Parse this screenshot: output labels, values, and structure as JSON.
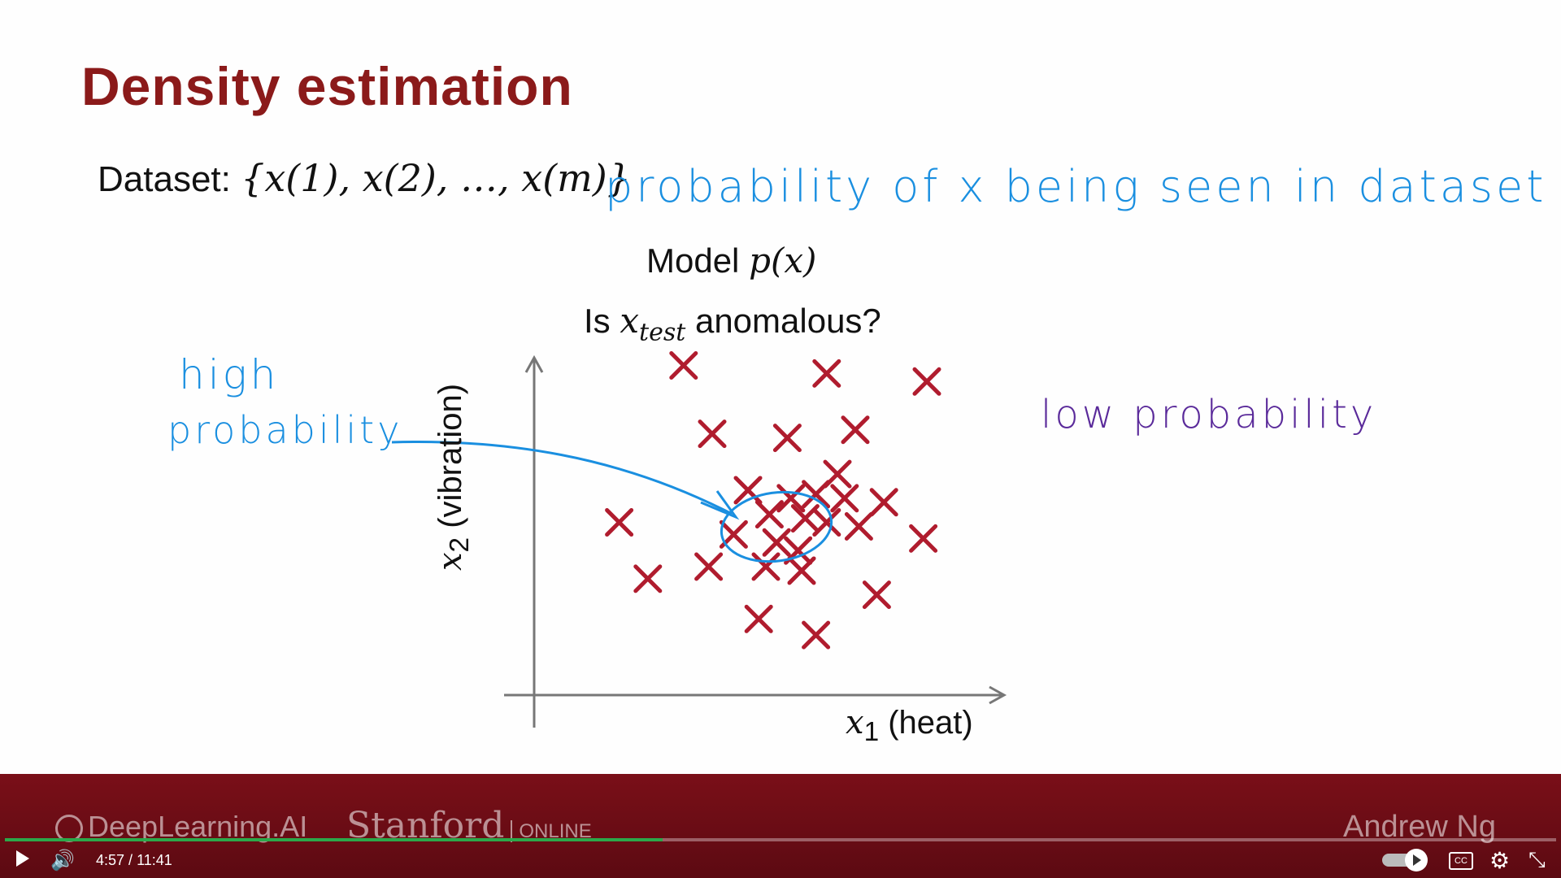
{
  "slide": {
    "title": "Density estimation",
    "dataset_label": "Dataset: ",
    "dataset_set": "{x(1), x(2), …, x(m)}",
    "model_label": "Model ",
    "model_math": "p(x)",
    "question_pre": "Is ",
    "question_var": "x",
    "question_sub": "test",
    "question_post": " anomalous?",
    "xaxis_var": "x",
    "xaxis_sub": "1",
    "xaxis_text": " (heat)",
    "yaxis_var": "x",
    "yaxis_sub": "2",
    "yaxis_text": " (vibration)"
  },
  "annotations": {
    "probability_note": "probability of x being seen in dataset",
    "high_line1": "high",
    "high_line2": "probability",
    "low": "low probability",
    "blue_color": "#1a8fe0",
    "purple_color": "#5a2a9a"
  },
  "scatter": {
    "marker_color": "#b01c2e",
    "points": [
      [
        0.32,
        0.9
      ],
      [
        0.72,
        0.88
      ],
      [
        1.0,
        0.86
      ],
      [
        0.4,
        0.73
      ],
      [
        0.61,
        0.72
      ],
      [
        0.8,
        0.74
      ],
      [
        0.75,
        0.63
      ],
      [
        0.5,
        0.59
      ],
      [
        0.62,
        0.57
      ],
      [
        0.69,
        0.58
      ],
      [
        0.77,
        0.57
      ],
      [
        0.88,
        0.56
      ],
      [
        0.14,
        0.51
      ],
      [
        0.56,
        0.53
      ],
      [
        0.66,
        0.52
      ],
      [
        0.72,
        0.51
      ],
      [
        0.81,
        0.5
      ],
      [
        0.46,
        0.48
      ],
      [
        0.58,
        0.46
      ],
      [
        0.64,
        0.44
      ],
      [
        0.99,
        0.47
      ],
      [
        0.22,
        0.37
      ],
      [
        0.39,
        0.4
      ],
      [
        0.55,
        0.4
      ],
      [
        0.65,
        0.39
      ],
      [
        0.86,
        0.33
      ],
      [
        0.53,
        0.27
      ],
      [
        0.69,
        0.23
      ]
    ]
  },
  "footer": {
    "brand_deeplearning": "DeepLearning.AI",
    "brand_stanford": "Stanford",
    "brand_online": "ONLINE",
    "author": "Andrew Ng"
  },
  "player": {
    "current_time": "4:57",
    "separator": " / ",
    "duration": "11:41",
    "progress_fraction": 0.424,
    "cc_label": "CC"
  }
}
